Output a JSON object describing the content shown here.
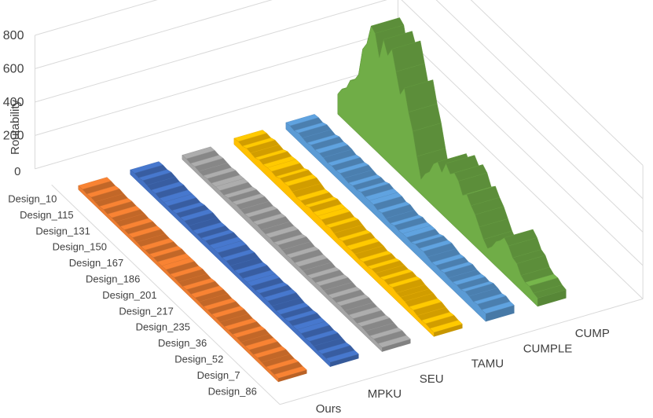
{
  "chart_data": {
    "type": "area",
    "variant": "3d-ribbon",
    "title": "",
    "ylabel": "Routability",
    "xlabel": "",
    "ylim": [
      0,
      800
    ],
    "y_ticks": [
      "200",
      "400",
      "600",
      "800"
    ],
    "y_zero_label": "0",
    "categories": [
      "Design_10",
      "Design_115",
      "Design_131",
      "Design_150",
      "Design_167",
      "Design_186",
      "Design_201",
      "Design_217",
      "Design_235",
      "Design_36",
      "Design_52",
      "Design_7",
      "Design_86"
    ],
    "series": [
      {
        "name": "Ours",
        "color": "#ED7D31",
        "values": [
          24,
          22,
          23,
          21,
          22,
          23,
          22,
          24,
          21,
          23,
          22,
          21,
          22
        ]
      },
      {
        "name": "MPKU",
        "color": "#4472C4",
        "values": [
          28,
          32,
          26,
          30,
          27,
          34,
          29,
          27,
          31,
          26,
          30,
          28,
          27
        ]
      },
      {
        "name": "SEU",
        "color": "#A5A5A5",
        "values": [
          26,
          25,
          28,
          33,
          38,
          32,
          34,
          30,
          29,
          33,
          28,
          27,
          26
        ]
      },
      {
        "name": "TAMU",
        "color": "#FFC000",
        "values": [
          36,
          44,
          52,
          58,
          46,
          50,
          44,
          40,
          36,
          52,
          44,
          30,
          26
        ]
      },
      {
        "name": "CUMPLE",
        "color": "#5B9BD5",
        "values": [
          40,
          44,
          48,
          40,
          46,
          52,
          42,
          46,
          54,
          48,
          44,
          56,
          48
        ]
      },
      {
        "name": "CUMP",
        "color": "#70AD47",
        "values": [
          120,
          300,
          720,
          640,
          540,
          90,
          290,
          320,
          220,
          60,
          220,
          90,
          50
        ]
      }
    ],
    "grid": true,
    "legend": "none"
  }
}
